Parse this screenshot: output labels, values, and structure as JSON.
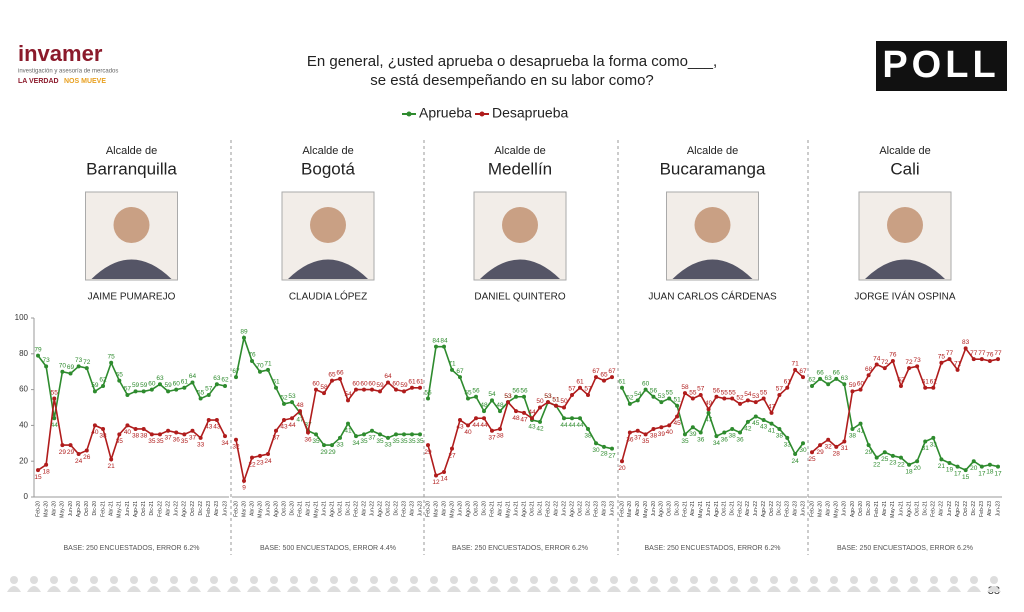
{
  "header": {
    "title": [
      "En general, ¿usted aprueba o desaprueba la forma como___,",
      "se está desempeñando en su labor como?"
    ],
    "brand": "invamer",
    "tagline": "investigación y asesoría de mercados",
    "slogan": [
      "LA VERDAD",
      "NOS MUEVE"
    ],
    "logo": "POLL"
  },
  "footer": {
    "page": "38"
  },
  "chart_data": [
    {
      "type": "line",
      "title": "Alcalde de",
      "subtitle": "Barranquilla",
      "person": "JAIME PUMAREJO",
      "note": "BASE: 250 ENCUESTADOS, ERROR 6.2%",
      "ylim": [
        0,
        100
      ],
      "yticks": [
        0,
        20,
        40,
        60,
        80,
        100
      ],
      "categories": [
        "Feb-20",
        "Mar-20",
        "Abr-20",
        "May-20",
        "Jun-20",
        "Ago-20",
        "Oct-20",
        "Dic-20",
        "Feb-21",
        "Abr-21",
        "May-21",
        "Jun-21",
        "Ago-21",
        "Oct-21",
        "Dic-21",
        "Feb-22",
        "Abr-22",
        "Jun-22",
        "Ago-22",
        "Oct-22",
        "Dic-22",
        "Feb-23",
        "Abr-23",
        "Jun-23"
      ],
      "series": [
        {
          "name": "Aprueba",
          "color": "#2e8b2e",
          "values": [
            79,
            73,
            44,
            70,
            69,
            73,
            72,
            59,
            62,
            75,
            65,
            57,
            59,
            59,
            60,
            63,
            59,
            60,
            61,
            64,
            55,
            57,
            63,
            62
          ]
        },
        {
          "name": "Desaprueba",
          "color": "#b01c1c",
          "values": [
            15,
            18,
            55,
            29,
            29,
            24,
            26,
            40,
            38,
            21,
            35,
            40,
            38,
            38,
            35,
            35,
            37,
            36,
            35,
            37,
            33,
            43,
            43,
            34
          ]
        }
      ]
    },
    {
      "type": "line",
      "title": "Alcalde de",
      "subtitle": "Bogotá",
      "person": "CLAUDIA LÓPEZ",
      "note": "BASE: 500 ENCUESTADOS, ERROR 4.4%",
      "ylim": [
        0,
        100
      ],
      "categories": [
        "Feb-20",
        "Mar-20",
        "Abr-20",
        "May-20",
        "Jun-20",
        "Ago-20",
        "Oct-20",
        "Dic-20",
        "Feb-21",
        "Abr-21",
        "May-21",
        "Jun-21",
        "Ago-21",
        "Oct-21",
        "Dic-21",
        "Feb-22",
        "Abr-22",
        "Jun-22",
        "Ago-22",
        "Oct-22",
        "Dic-22",
        "Feb-23",
        "Abr-23",
        "Jun-23"
      ],
      "series": [
        {
          "name": "Aprueba",
          "color": "#2e8b2e",
          "values": [
            67,
            89,
            76,
            70,
            71,
            61,
            52,
            53,
            47,
            37,
            35,
            29,
            29,
            33,
            41,
            34,
            35,
            37,
            35,
            33,
            35,
            35,
            35,
            35
          ]
        },
        {
          "name": "Desaprueba",
          "color": "#b01c1c",
          "values": [
            32,
            9,
            22,
            23,
            24,
            37,
            43,
            44,
            48,
            36,
            60,
            58,
            65,
            66,
            54,
            60,
            60,
            60,
            59,
            64,
            60,
            59,
            61,
            61
          ]
        }
      ]
    },
    {
      "type": "line",
      "title": "Alcalde de",
      "subtitle": "Medellín",
      "person": "DANIEL QUINTERO",
      "note": "BASE: 250 ENCUESTADOS, ERROR 6.2%",
      "ylim": [
        0,
        100
      ],
      "categories": [
        "Feb-20",
        "Mar-20",
        "Abr-20",
        "May-20",
        "Jun-20",
        "Ago-20",
        "Oct-20",
        "Dic-20",
        "Feb-21",
        "Abr-21",
        "May-21",
        "Jun-21",
        "Ago-21",
        "Oct-21",
        "Dic-21",
        "Feb-22",
        "Abr-22",
        "Jun-22",
        "Ago-22",
        "Oct-22",
        "Dic-22",
        "Feb-23",
        "Abr-23",
        "Jun-23"
      ],
      "series": [
        {
          "name": "Aprueba",
          "color": "#2e8b2e",
          "values": [
            55,
            84,
            84,
            71,
            67,
            55,
            56,
            48,
            54,
            48,
            53,
            56,
            56,
            43,
            42,
            53,
            51,
            44,
            44,
            44,
            38,
            30,
            28,
            27
          ]
        },
        {
          "name": "Desaprueba",
          "color": "#b01c1c",
          "values": [
            29,
            12,
            14,
            27,
            43,
            40,
            44,
            44,
            37,
            38,
            53,
            48,
            47,
            44,
            50,
            53,
            51,
            50,
            57,
            61,
            57,
            67,
            65,
            67
          ]
        }
      ]
    },
    {
      "type": "line",
      "title": "Alcalde de",
      "subtitle": "Bucaramanga",
      "person": "JUAN CARLOS CÁRDENAS",
      "note": "BASE: 250 ENCUESTADOS, ERROR 6.2%",
      "ylim": [
        0,
        100
      ],
      "categories": [
        "Feb-20",
        "Mar-20",
        "Abr-20",
        "May-20",
        "Jun-20",
        "Ago-20",
        "Oct-20",
        "Dic-20",
        "Feb-21",
        "Abr-21",
        "May-21",
        "Jun-21",
        "Ago-21",
        "Oct-21",
        "Dic-21",
        "Feb-22",
        "Abr-22",
        "Jun-22",
        "Ago-22",
        "Oct-22",
        "Dic-22",
        "Feb-23",
        "Abr-23",
        "Jun-23"
      ],
      "series": [
        {
          "name": "Aprueba",
          "color": "#2e8b2e",
          "values": [
            61,
            52,
            54,
            60,
            56,
            53,
            55,
            51,
            35,
            39,
            36,
            47,
            34,
            36,
            38,
            36,
            42,
            45,
            43,
            41,
            38,
            33,
            24,
            30
          ]
        },
        {
          "name": "Desaprueba",
          "color": "#b01c1c",
          "values": [
            20,
            36,
            37,
            35,
            38,
            39,
            40,
            45,
            58,
            55,
            57,
            49,
            56,
            55,
            55,
            52,
            54,
            53,
            55,
            47,
            57,
            61,
            71,
            67
          ]
        }
      ]
    },
    {
      "type": "line",
      "title": "Alcalde de",
      "subtitle": "Cali",
      "person": "JORGE IVÁN OSPINA",
      "note": "BASE: 250 ENCUESTADOS, ERROR 6.2%",
      "ylim": [
        0,
        100
      ],
      "categories": [
        "Feb-20",
        "Mar-20",
        "Abr-20",
        "May-20",
        "Jun-20",
        "Ago-20",
        "Oct-20",
        "Dic-20",
        "Feb-21",
        "Abr-21",
        "May-21",
        "Jun-21",
        "Ago-21",
        "Oct-21",
        "Dic-21",
        "Feb-22",
        "Abr-22",
        "Jun-22",
        "Ago-22",
        "Oct-22",
        "Dic-22",
        "Feb-23",
        "Abr-23",
        "Jun-23"
      ],
      "series": [
        {
          "name": "Aprueba",
          "color": "#2e8b2e",
          "values": [
            62,
            66,
            63,
            66,
            63,
            38,
            41,
            29,
            22,
            25,
            23,
            22,
            18,
            20,
            31,
            33,
            21,
            19,
            17,
            15,
            20,
            17,
            18,
            17
          ]
        },
        {
          "name": "Desaprueba",
          "color": "#b01c1c",
          "values": [
            25,
            29,
            32,
            28,
            31,
            59,
            60,
            68,
            74,
            72,
            76,
            62,
            72,
            73,
            61,
            61,
            75,
            77,
            71,
            83,
            77,
            77,
            76,
            77
          ]
        }
      ]
    }
  ]
}
